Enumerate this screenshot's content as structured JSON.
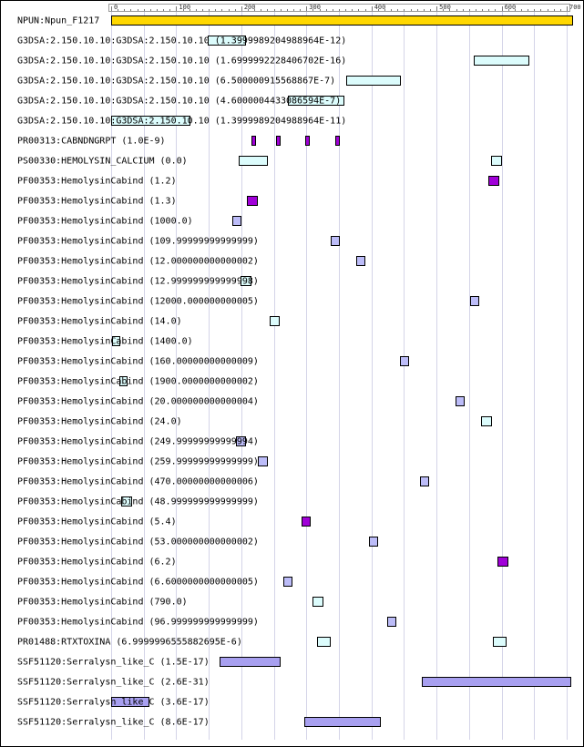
{
  "axis": {
    "min": 0,
    "max": 700,
    "ticks": [
      0,
      100,
      200,
      300,
      400,
      500,
      600,
      700
    ]
  },
  "colors": {
    "query": "#ffd700",
    "light_cyan": "#dcfcfc",
    "purple": "#a000d8",
    "lavender": "#bcbcf8",
    "medium_purple": "#a8a0f0",
    "grid": "#d4d4e8",
    "border": "#000000"
  },
  "rows": [
    {
      "label": "NPUN:Npun_F1217",
      "segments": [
        {
          "start": 0,
          "end": 708,
          "color": "query"
        }
      ]
    },
    {
      "label": "G3DSA:2.150.10.10:G3DSA:2.150.10.10 (1.3999989204988964E-12)",
      "segments": [
        {
          "start": 149,
          "end": 206,
          "color": "light_cyan"
        }
      ]
    },
    {
      "label": "G3DSA:2.150.10.10:G3DSA:2.150.10.10 (1.6999992228406702E-16)",
      "segments": [
        {
          "start": 557,
          "end": 641,
          "color": "light_cyan"
        }
      ]
    },
    {
      "label": "G3DSA:2.150.10.10:G3DSA:2.150.10.10 (6.500000915568867E-7)",
      "segments": [
        {
          "start": 361,
          "end": 444,
          "color": "light_cyan"
        }
      ]
    },
    {
      "label": "G3DSA:2.150.10.10:G3DSA:2.150.10.10 (4.6000004433086594E-7)",
      "segments": [
        {
          "start": 272,
          "end": 358,
          "color": "light_cyan"
        }
      ]
    },
    {
      "label": "G3DSA:2.150.10.10:G3DSA:2.150.10.10 (1.3999989204988964E-11)",
      "segments": [
        {
          "start": 0,
          "end": 120,
          "color": "light_cyan"
        }
      ]
    },
    {
      "label": "PR00313:CABNDNGRPT (1.0E-9)",
      "segments": [
        {
          "start": 216,
          "end": 221,
          "color": "purple"
        },
        {
          "start": 254,
          "end": 259,
          "color": "purple"
        },
        {
          "start": 298,
          "end": 303,
          "color": "purple"
        },
        {
          "start": 345,
          "end": 350,
          "color": "purple"
        }
      ]
    },
    {
      "label": "PS00330:HEMOLYSIN_CALCIUM (0.0)",
      "segments": [
        {
          "start": 196,
          "end": 240,
          "color": "light_cyan"
        },
        {
          "start": 584,
          "end": 599,
          "color": "light_cyan"
        }
      ]
    },
    {
      "label": "PF00353:HemolysinCabind (1.2)",
      "segments": [
        {
          "start": 579,
          "end": 594,
          "color": "purple"
        }
      ]
    },
    {
      "label": "PF00353:HemolysinCabind (1.3)",
      "segments": [
        {
          "start": 209,
          "end": 224,
          "color": "purple"
        }
      ]
    },
    {
      "label": "PF00353:HemolysinCabind (1000.0)",
      "segments": [
        {
          "start": 186,
          "end": 198,
          "color": "lavender"
        }
      ]
    },
    {
      "label": "PF00353:HemolysinCabind (109.99999999999999)",
      "segments": [
        {
          "start": 337,
          "end": 349,
          "color": "lavender"
        }
      ]
    },
    {
      "label": "PF00353:HemolysinCabind (12.000000000000002)",
      "segments": [
        {
          "start": 377,
          "end": 389,
          "color": "lavender"
        }
      ]
    },
    {
      "label": "PF00353:HemolysinCabind (12.999999999999998)",
      "segments": [
        {
          "start": 199,
          "end": 214,
          "color": "light_cyan"
        }
      ]
    },
    {
      "label": "PF00353:HemolysinCabind (12000.000000000005)",
      "segments": [
        {
          "start": 551,
          "end": 563,
          "color": "lavender"
        }
      ]
    },
    {
      "label": "PF00353:HemolysinCabind (14.0)",
      "segments": [
        {
          "start": 244,
          "end": 258,
          "color": "light_cyan"
        }
      ]
    },
    {
      "label": "PF00353:HemolysinCabind (1400.0)",
      "segments": [
        {
          "start": 1,
          "end": 12,
          "color": "light_cyan"
        }
      ]
    },
    {
      "label": "PF00353:HemolysinCabind (160.00000000000009)",
      "segments": [
        {
          "start": 444,
          "end": 456,
          "color": "lavender"
        }
      ]
    },
    {
      "label": "PF00353:HemolysinCabind (1900.0000000000002)",
      "segments": [
        {
          "start": 12,
          "end": 23,
          "color": "light_cyan"
        }
      ]
    },
    {
      "label": "PF00353:HemolysinCabind (20.000000000000004)",
      "segments": [
        {
          "start": 529,
          "end": 541,
          "color": "lavender"
        }
      ]
    },
    {
      "label": "PF00353:HemolysinCabind (24.0)",
      "segments": [
        {
          "start": 568,
          "end": 583,
          "color": "light_cyan"
        }
      ]
    },
    {
      "label": "PF00353:HemolysinCabind (249.99999999999994)",
      "segments": [
        {
          "start": 192,
          "end": 206,
          "color": "lavender"
        }
      ]
    },
    {
      "label": "PF00353:HemolysinCabind (259.99999999999999)",
      "segments": [
        {
          "start": 226,
          "end": 240,
          "color": "lavender"
        }
      ]
    },
    {
      "label": "PF00353:HemolysinCabind (470.00000000000006)",
      "segments": [
        {
          "start": 475,
          "end": 487,
          "color": "lavender"
        }
      ]
    },
    {
      "label": "PF00353:HemolysinCabind (48.999999999999999)",
      "segments": [
        {
          "start": 15,
          "end": 30,
          "color": "light_cyan"
        }
      ]
    },
    {
      "label": "PF00353:HemolysinCabind (5.4)",
      "segments": [
        {
          "start": 293,
          "end": 305,
          "color": "purple"
        }
      ]
    },
    {
      "label": "PF00353:HemolysinCabind (53.000000000000002)",
      "segments": [
        {
          "start": 396,
          "end": 408,
          "color": "lavender"
        }
      ]
    },
    {
      "label": "PF00353:HemolysinCabind (6.2)",
      "segments": [
        {
          "start": 594,
          "end": 609,
          "color": "purple"
        }
      ]
    },
    {
      "label": "PF00353:HemolysinCabind (6.6000000000000005)",
      "segments": [
        {
          "start": 264,
          "end": 276,
          "color": "lavender"
        }
      ]
    },
    {
      "label": "PF00353:HemolysinCabind (790.0)",
      "segments": [
        {
          "start": 309,
          "end": 324,
          "color": "light_cyan"
        }
      ]
    },
    {
      "label": "PF00353:HemolysinCabind (96.999999999999999)",
      "segments": [
        {
          "start": 424,
          "end": 436,
          "color": "lavender"
        }
      ]
    },
    {
      "label": "PR01488:RTXTOXINA (6.9999996555882695E-6)",
      "segments": [
        {
          "start": 316,
          "end": 336,
          "color": "light_cyan"
        },
        {
          "start": 587,
          "end": 607,
          "color": "light_cyan"
        }
      ]
    },
    {
      "label": "SSF51120:Serralysn_like_C (1.5E-17)",
      "segments": [
        {
          "start": 167,
          "end": 259,
          "color": "medium_purple"
        }
      ]
    },
    {
      "label": "SSF51120:Serralysn_like_C (2.6E-31)",
      "segments": [
        {
          "start": 478,
          "end": 706,
          "color": "medium_purple"
        }
      ]
    },
    {
      "label": "SSF51120:Serralysn_like_C (3.6E-17)",
      "segments": [
        {
          "start": 0,
          "end": 58,
          "color": "medium_purple"
        }
      ]
    },
    {
      "label": "SSF51120:Serralysn_like_C (8.6E-17)",
      "segments": [
        {
          "start": 297,
          "end": 413,
          "color": "medium_purple"
        }
      ]
    }
  ]
}
